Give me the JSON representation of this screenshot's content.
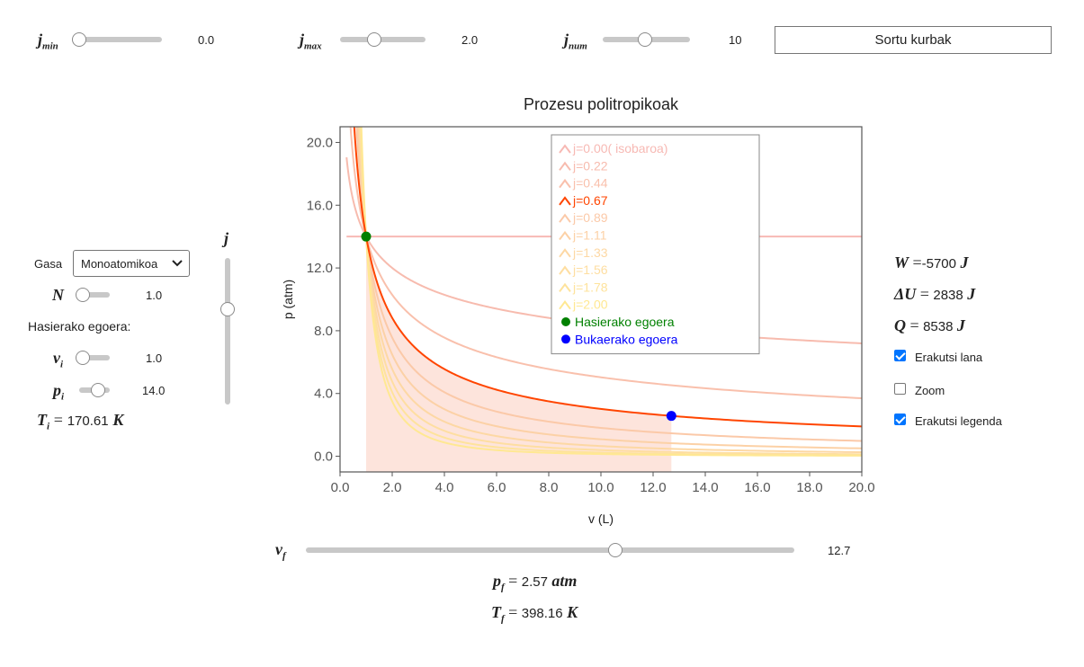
{
  "controls": {
    "jmin": {
      "label": "j",
      "sub": "min",
      "value": "0.0",
      "fraction": 0.0
    },
    "jmax": {
      "label": "j",
      "sub": "max",
      "value": "2.0",
      "fraction": 0.38
    },
    "jnum": {
      "label": "j",
      "sub": "num",
      "value": "10",
      "fraction": 0.48
    },
    "generate_button": "Sortu kurbak"
  },
  "left": {
    "gas_label": "Gasa",
    "gas_select": "Monoatomikoa",
    "N": {
      "label": "N",
      "value": "1.0",
      "fraction": 0.0
    },
    "initial_state_label": "Hasierako egoera:",
    "vi": {
      "label": "v",
      "sub": "i",
      "value": "1.0",
      "fraction": 0.0
    },
    "pi": {
      "label": "p",
      "sub": "i",
      "value": "14.0",
      "fraction": 0.7
    },
    "Ti": {
      "label": "T",
      "sub": "i",
      "eq": "=",
      "value": "170.61",
      "unit": "K"
    },
    "j_slider": {
      "label": "j",
      "fraction": 0.33
    }
  },
  "right": {
    "W": {
      "label": "W",
      "eq": "=",
      "value": "-5700",
      "unit": "J"
    },
    "dU": {
      "label": "ΔU",
      "eq": "=",
      "value": "2838",
      "unit": "J"
    },
    "Q": {
      "label": "Q",
      "eq": "=",
      "value": "8538",
      "unit": "J"
    },
    "show_work": {
      "label": "Erakutsi lana",
      "checked": true
    },
    "zoom": {
      "label": "Zoom",
      "checked": false
    },
    "show_legend": {
      "label": "Erakutsi legenda",
      "checked": true
    }
  },
  "bottom": {
    "vf": {
      "label": "v",
      "sub": "f",
      "value": "12.7",
      "fraction": 0.638
    },
    "pf": {
      "label": "p",
      "sub": "f",
      "eq": "=",
      "value": "2.57",
      "unit": "atm"
    },
    "Tf": {
      "label": "T",
      "sub": "f",
      "eq": "=",
      "value": "398.16",
      "unit": "K"
    }
  },
  "chart_data": {
    "type": "line",
    "title": "Prozesu politropikoak",
    "xlabel": "v (L)",
    "ylabel": "p (atm)",
    "xlim": [
      0,
      20
    ],
    "ylim": [
      -1,
      21
    ],
    "xticks": [
      "0.0",
      "2.0",
      "4.0",
      "6.0",
      "8.0",
      "10.0",
      "12.0",
      "14.0",
      "16.0",
      "18.0",
      "20.0"
    ],
    "yticks": [
      "0.0",
      "4.0",
      "8.0",
      "12.0",
      "16.0",
      "20.0"
    ],
    "grid": false,
    "legend_position": "top-center",
    "initial_point": {
      "x": 1.0,
      "y": 14.0,
      "name": "Hasierako egoera",
      "color": "#008000"
    },
    "final_point": {
      "x": 12.7,
      "y": 2.57,
      "name": "Bukaerako egoera",
      "color": "#0000ff"
    },
    "work_area": {
      "from_x": 1.0,
      "to_x": 12.7,
      "color": "#fde4dc"
    },
    "series": [
      {
        "name": "j=0.00( isobaroa)",
        "j": 0.0,
        "color": "#f7b9b4",
        "highlight": false
      },
      {
        "name": "j=0.22",
        "j": 0.2222,
        "color": "#f7bbae",
        "highlight": false
      },
      {
        "name": "j=0.44",
        "j": 0.4444,
        "color": "#f9c0ac",
        "highlight": false
      },
      {
        "name": "j=0.67",
        "j": 0.6667,
        "color": "#ff4500",
        "highlight": true
      },
      {
        "name": "j=0.89",
        "j": 0.8889,
        "color": "#fbc9a8",
        "highlight": false
      },
      {
        "name": "j=1.11",
        "j": 1.1111,
        "color": "#fcd1a6",
        "highlight": false
      },
      {
        "name": "j=1.33",
        "j": 1.3333,
        "color": "#fdd8a4",
        "highlight": false
      },
      {
        "name": "j=1.56",
        "j": 1.5556,
        "color": "#fedea1",
        "highlight": false
      },
      {
        "name": "j=1.78",
        "j": 1.7778,
        "color": "#fee39c",
        "highlight": false
      },
      {
        "name": "j=2.00",
        "j": 2.0,
        "color": "#ffe892",
        "highlight": false
      }
    ]
  }
}
